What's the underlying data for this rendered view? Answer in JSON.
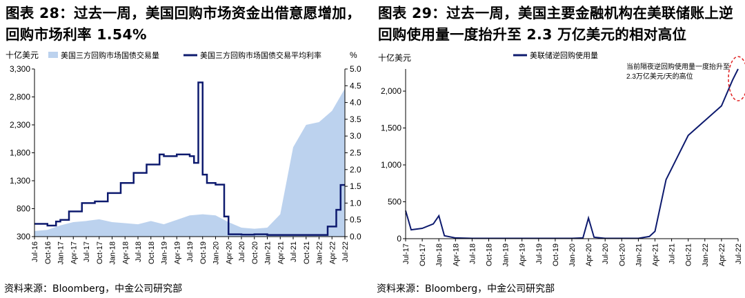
{
  "left": {
    "title": "图表 28：过去一周，美国回购市场资金出借意愿增加，回购市场利率 1.54%",
    "source": "资料来源：Bloomberg，中金公司研究部",
    "y_left_unit": "十亿美元",
    "y_right_unit": "%",
    "legend_area": "美国三方回购市场国债交易量",
    "legend_line": "美国三方回购市场国债交易平均利率",
    "colors": {
      "area": "#bcd2ee",
      "line": "#0d1a6e"
    }
  },
  "right": {
    "title": "图表 29：过去一周，美国主要金融机构在美联储账上逆回购使用量一度抬升至 2.3 万亿美元的相对高位",
    "source": "资料来源：Bloomberg，中金公司研究部",
    "y_unit": "十亿美元",
    "legend_line": "美联储逆回购使用量",
    "annotation": [
      "当前隔夜逆回购使用量一度抬升至",
      "2.3万亿美元/天的高位"
    ],
    "colors": {
      "line": "#0d1a6e",
      "highlight": "#e02020"
    }
  },
  "chart_data": [
    {
      "type": "line",
      "title": "图表 28：过去一周，美国回购市场资金出借意愿增加，回购市场利率 1.54%",
      "x_tick_labels": [
        "Jul-16",
        "Oct-16",
        "Jan-17",
        "Apr-17",
        "Jul-17",
        "Oct-17",
        "Jan-18",
        "Apr-18",
        "Jul-18",
        "Oct-18",
        "Jan-19",
        "Apr-19",
        "Jul-19",
        "Oct-19",
        "Jan-20",
        "Apr-20",
        "Jul-20",
        "Oct-20",
        "Jan-21",
        "Apr-21",
        "Jul-21",
        "Oct-21",
        "Jan-22",
        "Apr-22",
        "Jul-22"
      ],
      "ylim_left": [
        300,
        3300
      ],
      "yticks_left": [
        300,
        800,
        1300,
        1800,
        2300,
        2800,
        3300
      ],
      "ylim_right": [
        0,
        5
      ],
      "yticks_right": [
        0.0,
        0.5,
        1.0,
        1.5,
        2.0,
        2.5,
        3.0,
        3.5,
        4.0,
        4.5,
        5.0
      ],
      "grid": false,
      "series": [
        {
          "name": "美国三方回购市场国债交易量",
          "kind": "area",
          "axis": "left",
          "x": [
            "Jul-16",
            "Oct-16",
            "Jan-17",
            "Apr-17",
            "Jul-17",
            "Oct-17",
            "Jan-18",
            "Apr-18",
            "Jul-18",
            "Oct-18",
            "Jan-19",
            "Apr-19",
            "Jul-19",
            "Oct-19",
            "Jan-20",
            "Apr-20",
            "Jul-20",
            "Oct-20",
            "Jan-21",
            "Apr-21",
            "Jul-21",
            "Oct-21",
            "Jan-22",
            "Apr-22",
            "Jul-22"
          ],
          "values": [
            400,
            420,
            500,
            560,
            580,
            610,
            560,
            540,
            520,
            580,
            520,
            600,
            680,
            700,
            680,
            560,
            460,
            440,
            460,
            700,
            1900,
            2300,
            2350,
            2550,
            2950
          ]
        },
        {
          "name": "美国三方回购市场国债交易平均利率",
          "kind": "line",
          "axis": "right",
          "x": [
            "Jul-16",
            "Oct-16",
            "Dec-16",
            "Jan-17",
            "Mar-17",
            "Jun-17",
            "Sep-17",
            "Dec-17",
            "Mar-18",
            "Jun-18",
            "Sep-18",
            "Dec-18",
            "Jan-19",
            "Apr-19",
            "Jul-19",
            "Aug-19",
            "Sep-19",
            "Oct-19",
            "Nov-19",
            "Jan-20",
            "Mar-20",
            "Apr-20",
            "Jul-20",
            "Oct-20",
            "Jan-21",
            "Jun-21",
            "Oct-21",
            "Jan-22",
            "Mar-22",
            "May-22",
            "Jun-22",
            "Jul-22"
          ],
          "values": [
            0.38,
            0.33,
            0.45,
            0.5,
            0.75,
            1.0,
            1.05,
            1.3,
            1.6,
            1.9,
            2.15,
            2.45,
            2.4,
            2.45,
            2.4,
            2.2,
            4.6,
            1.85,
            1.6,
            1.55,
            0.6,
            0.07,
            0.06,
            0.07,
            0.05,
            0.05,
            0.05,
            0.05,
            0.3,
            0.8,
            1.54,
            1.54
          ]
        }
      ]
    },
    {
      "type": "line",
      "title": "图表 29：过去一周，美国主要金融机构在美联储账上逆回购使用量一度抬升至 2.3 万亿美元的相对高位",
      "x_tick_labels": [
        "Jul-17",
        "Oct-17",
        "Jan-18",
        "Apr-18",
        "Jul-18",
        "Oct-18",
        "Jan-19",
        "Apr-19",
        "Jul-19",
        "Oct-19",
        "Jan-20",
        "Apr-20",
        "Jul-20",
        "Oct-20",
        "Jan-21",
        "Apr-21",
        "Jul-21",
        "Oct-21",
        "Jan-22",
        "Apr-22",
        "Jul-22"
      ],
      "ylim": [
        0,
        2300
      ],
      "yticks": [
        0,
        500,
        1000,
        1500,
        2000
      ],
      "grid": false,
      "series": [
        {
          "name": "美联储逆回购使用量",
          "x": [
            "Jul-17",
            "Aug-17",
            "Oct-17",
            "Dec-17",
            "Jan-18",
            "Feb-18",
            "Apr-18",
            "Jul-18",
            "Oct-18",
            "Jan-19",
            "Apr-19",
            "Jul-19",
            "Oct-19",
            "Jan-20",
            "Mar-20",
            "Apr-20",
            "May-20",
            "Jul-20",
            "Oct-20",
            "Jan-21",
            "Mar-21",
            "Apr-21",
            "May-21",
            "Jun-21",
            "Jul-21",
            "Aug-21",
            "Oct-21",
            "Jan-22",
            "Apr-22",
            "Jun-22",
            "Jul-22"
          ],
          "values": [
            380,
            120,
            140,
            200,
            310,
            40,
            10,
            5,
            5,
            5,
            5,
            5,
            5,
            5,
            10,
            280,
            20,
            5,
            5,
            5,
            30,
            100,
            450,
            800,
            950,
            1100,
            1400,
            1600,
            1800,
            2150,
            2300
          ]
        }
      ]
    }
  ]
}
